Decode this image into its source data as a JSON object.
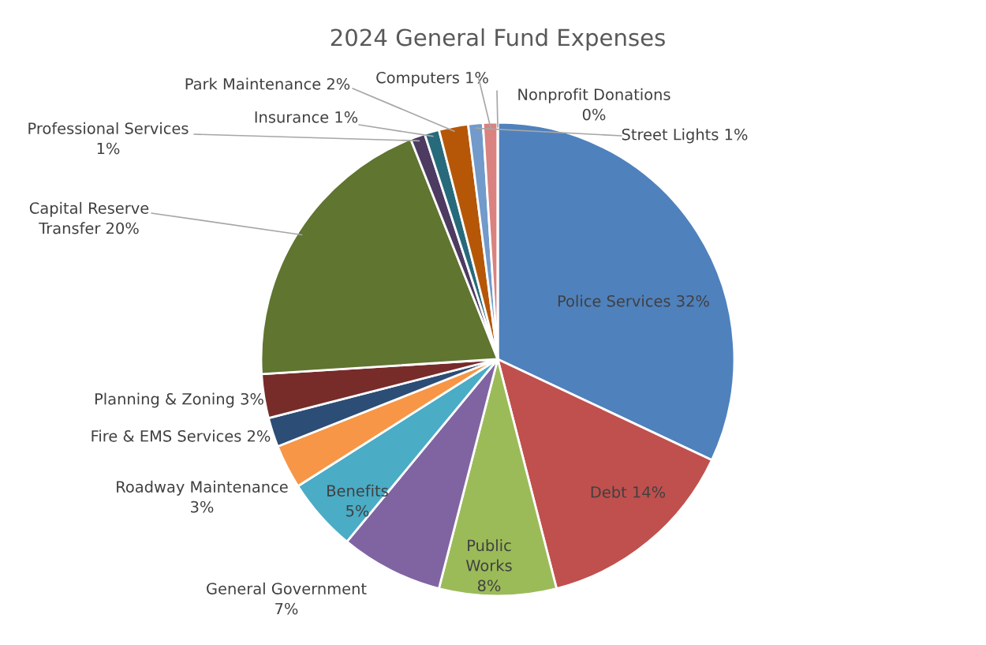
{
  "chart_data": {
    "type": "pie",
    "title": "2024 General Fund Expenses",
    "categories": [
      "Police Services",
      "Debt",
      "Public Works",
      "General Government",
      "Benefits",
      "Roadway Maintenance",
      "Fire & EMS Services",
      "Planning & Zoning",
      "Capital Reserve Transfer",
      "Professional Services",
      "Insurance",
      "Park Maintenance",
      "Street Lights",
      "Computers",
      "Nonprofit Donations"
    ],
    "values": [
      32,
      14,
      8,
      7,
      5,
      3,
      2,
      3,
      20,
      1,
      1,
      2,
      1,
      1,
      0
    ],
    "value_labels": [
      "32%",
      "14%",
      "8%",
      "7%",
      "5%",
      "3%",
      "2%",
      "3%",
      "20%",
      "1%",
      "1%",
      "2%",
      "1%",
      "1%",
      "0%"
    ],
    "colors": [
      "#4f81bd",
      "#c0504d",
      "#9bbb59",
      "#8064a2",
      "#4bacc6",
      "#f79646",
      "#2c4d75",
      "#772c2a",
      "#5f7530",
      "#4d3b62",
      "#276a7c",
      "#b65708",
      "#729aca",
      "#d9827f",
      "#afc97a"
    ],
    "legend": false
  }
}
